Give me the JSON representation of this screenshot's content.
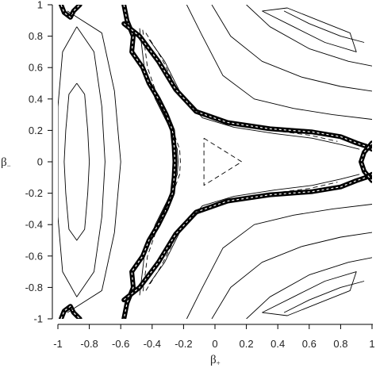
{
  "chart_data": {
    "type": "contour",
    "xlabel": "β",
    "xlabel_sub": "+",
    "ylabel": "β",
    "ylabel_sub": "−",
    "xlim": [
      -1,
      1
    ],
    "ylim": [
      -1,
      1
    ],
    "x_ticks": [
      -1,
      -0.8,
      -0.6,
      -0.4,
      -0.2,
      0,
      0.2,
      0.4,
      0.6,
      0.8,
      1
    ],
    "x_tick_labels": [
      "-1",
      "-0.8",
      "-0.6",
      "-0.4",
      "-0.2",
      "0",
      "0.2",
      "0.4",
      "0.6",
      "0.8",
      "1"
    ],
    "y_ticks": [
      1,
      0.8,
      0.6,
      0.4,
      0.2,
      0,
      -0.2,
      -0.4,
      -0.6,
      -0.8,
      -1
    ],
    "y_tick_labels": [
      "1",
      "0.8",
      "0.6",
      "0.4",
      "0.2",
      "0",
      "-0.2",
      "-0.4",
      "-0.6",
      "-0.8",
      "-1"
    ],
    "grid": false,
    "line_color": "#000000",
    "background": "#ffffff",
    "contours": [
      {
        "style": "dashed",
        "points": [
          [
            -0.07,
            0.15
          ],
          [
            0.17,
            0.0
          ],
          [
            -0.07,
            -0.15
          ],
          [
            -0.07,
            0.15
          ]
        ]
      },
      {
        "style": "solid",
        "points": [
          [
            -0.88,
            0.5
          ],
          [
            -0.83,
            0.43
          ],
          [
            -0.81,
            0.2
          ],
          [
            -0.8,
            0.0
          ],
          [
            -0.81,
            -0.2
          ],
          [
            -0.83,
            -0.43
          ],
          [
            -0.88,
            -0.5
          ],
          [
            -0.93,
            -0.43
          ],
          [
            -0.95,
            -0.2
          ],
          [
            -0.96,
            0.0
          ],
          [
            -0.95,
            0.2
          ],
          [
            -0.93,
            0.43
          ],
          [
            -0.88,
            0.5
          ]
        ]
      },
      {
        "style": "solid",
        "points": [
          [
            -0.88,
            0.86
          ],
          [
            -0.77,
            0.7
          ],
          [
            -0.72,
            0.35
          ],
          [
            -0.7,
            0.0
          ],
          [
            -0.72,
            -0.35
          ],
          [
            -0.77,
            -0.7
          ],
          [
            -0.88,
            -0.86
          ],
          [
            -0.97,
            -0.7
          ],
          [
            -1.0,
            -0.35
          ],
          [
            -1.0,
            0.0
          ],
          [
            -1.0,
            0.35
          ],
          [
            -0.97,
            0.7
          ],
          [
            -0.88,
            0.86
          ]
        ]
      },
      {
        "style": "solid",
        "points": [
          [
            -0.94,
            0.96
          ],
          [
            -0.72,
            0.82
          ],
          [
            -0.64,
            0.45
          ],
          [
            -0.6,
            0.0
          ],
          [
            -0.64,
            -0.45
          ],
          [
            -0.72,
            -0.82
          ],
          [
            -0.94,
            -0.96
          ]
        ]
      },
      {
        "style": "solid",
        "points": [
          [
            -0.48,
            0.85
          ],
          [
            -0.45,
            0.6
          ],
          [
            -0.38,
            0.4
          ],
          [
            -0.29,
            0.22
          ],
          [
            -0.24,
            0.08
          ],
          [
            -0.235,
            0.0
          ],
          [
            -0.24,
            -0.08
          ],
          [
            -0.29,
            -0.22
          ],
          [
            -0.38,
            -0.4
          ],
          [
            -0.45,
            -0.6
          ],
          [
            -0.48,
            -0.85
          ]
        ]
      },
      {
        "style": "dashed",
        "points": [
          [
            -0.46,
            0.84
          ],
          [
            -0.43,
            0.6
          ],
          [
            -0.36,
            0.4
          ],
          [
            -0.275,
            0.22
          ],
          [
            -0.225,
            0.08
          ],
          [
            -0.22,
            0.0
          ],
          [
            -0.225,
            -0.08
          ],
          [
            -0.275,
            -0.22
          ],
          [
            -0.36,
            -0.4
          ],
          [
            -0.43,
            -0.6
          ],
          [
            -0.46,
            -0.84
          ]
        ]
      },
      {
        "style": "solid",
        "points": [
          [
            -0.42,
            0.78
          ],
          [
            -0.32,
            0.64
          ],
          [
            -0.22,
            0.44
          ],
          [
            -0.08,
            0.28
          ],
          [
            0.12,
            0.22
          ],
          [
            0.38,
            0.18
          ],
          [
            0.62,
            0.15
          ],
          [
            0.8,
            0.11
          ],
          [
            0.92,
            0.08
          ]
        ]
      },
      {
        "style": "dashed",
        "points": [
          [
            -0.44,
            0.82
          ],
          [
            -0.34,
            0.66
          ],
          [
            -0.24,
            0.46
          ],
          [
            -0.1,
            0.3
          ],
          [
            0.1,
            0.24
          ],
          [
            0.36,
            0.2
          ],
          [
            0.6,
            0.17
          ],
          [
            0.78,
            0.13
          ]
        ]
      },
      {
        "style": "solid",
        "points": [
          [
            -0.42,
            -0.78
          ],
          [
            -0.32,
            -0.64
          ],
          [
            -0.22,
            -0.44
          ],
          [
            -0.08,
            -0.28
          ],
          [
            0.12,
            -0.22
          ],
          [
            0.38,
            -0.18
          ],
          [
            0.62,
            -0.15
          ],
          [
            0.8,
            -0.11
          ],
          [
            0.92,
            -0.08
          ]
        ]
      },
      {
        "style": "dashed",
        "points": [
          [
            -0.44,
            -0.82
          ],
          [
            -0.34,
            -0.66
          ],
          [
            -0.24,
            -0.46
          ],
          [
            -0.1,
            -0.3
          ],
          [
            0.1,
            -0.24
          ],
          [
            0.36,
            -0.2
          ],
          [
            0.6,
            -0.17
          ],
          [
            0.78,
            -0.13
          ]
        ]
      },
      {
        "style": "solid",
        "points": [
          [
            -0.18,
            1.0
          ],
          [
            -0.08,
            0.8
          ],
          [
            0.05,
            0.55
          ],
          [
            0.25,
            0.4
          ],
          [
            0.5,
            0.34
          ],
          [
            0.75,
            0.3
          ],
          [
            1.0,
            0.27
          ]
        ]
      },
      {
        "style": "solid",
        "points": [
          [
            -0.02,
            1.0
          ],
          [
            0.1,
            0.8
          ],
          [
            0.3,
            0.64
          ],
          [
            0.55,
            0.54
          ],
          [
            0.8,
            0.48
          ],
          [
            1.0,
            0.45
          ]
        ]
      },
      {
        "style": "solid",
        "points": [
          [
            0.2,
            1.0
          ],
          [
            0.35,
            0.86
          ],
          [
            0.6,
            0.72
          ],
          [
            0.85,
            0.64
          ],
          [
            1.0,
            0.61
          ]
        ]
      },
      {
        "style": "solid",
        "points": [
          [
            0.44,
            0.96
          ],
          [
            0.6,
            0.88
          ],
          [
            0.8,
            0.8
          ],
          [
            0.95,
            0.76
          ]
        ]
      },
      {
        "style": "solid",
        "points": [
          [
            0.3,
            0.96
          ],
          [
            0.5,
            0.86
          ],
          [
            0.7,
            0.76
          ],
          [
            0.9,
            0.7
          ],
          [
            0.86,
            0.82
          ],
          [
            0.66,
            0.9
          ],
          [
            0.46,
            0.98
          ],
          [
            0.3,
            0.96
          ]
        ]
      },
      {
        "style": "solid",
        "points": [
          [
            -0.18,
            -1.0
          ],
          [
            -0.08,
            -0.8
          ],
          [
            0.05,
            -0.55
          ],
          [
            0.25,
            -0.4
          ],
          [
            0.5,
            -0.34
          ],
          [
            0.75,
            -0.3
          ],
          [
            1.0,
            -0.27
          ]
        ]
      },
      {
        "style": "solid",
        "points": [
          [
            -0.02,
            -1.0
          ],
          [
            0.1,
            -0.8
          ],
          [
            0.3,
            -0.64
          ],
          [
            0.55,
            -0.54
          ],
          [
            0.8,
            -0.48
          ],
          [
            1.0,
            -0.45
          ]
        ]
      },
      {
        "style": "solid",
        "points": [
          [
            0.2,
            -1.0
          ],
          [
            0.35,
            -0.86
          ],
          [
            0.6,
            -0.72
          ],
          [
            0.85,
            -0.64
          ],
          [
            1.0,
            -0.61
          ]
        ]
      },
      {
        "style": "solid",
        "points": [
          [
            0.44,
            -0.96
          ],
          [
            0.6,
            -0.88
          ],
          [
            0.8,
            -0.8
          ],
          [
            0.95,
            -0.76
          ]
        ]
      },
      {
        "style": "solid",
        "points": [
          [
            0.3,
            -0.96
          ],
          [
            0.5,
            -0.86
          ],
          [
            0.7,
            -0.76
          ],
          [
            0.9,
            -0.7
          ],
          [
            0.86,
            -0.82
          ],
          [
            0.66,
            -0.9
          ],
          [
            0.46,
            -0.98
          ],
          [
            0.3,
            -0.96
          ]
        ]
      }
    ],
    "heavy_bands": [
      {
        "points": [
          [
            -0.58,
            1.0
          ],
          [
            -0.56,
            0.9
          ],
          [
            -0.52,
            0.8
          ],
          [
            -0.53,
            0.7
          ],
          [
            -0.46,
            0.6
          ],
          [
            -0.42,
            0.5
          ],
          [
            -0.36,
            0.4
          ],
          [
            -0.31,
            0.3
          ],
          [
            -0.27,
            0.2
          ],
          [
            -0.26,
            0.1
          ],
          [
            -0.255,
            0.0
          ],
          [
            -0.26,
            -0.1
          ],
          [
            -0.27,
            -0.2
          ],
          [
            -0.31,
            -0.3
          ],
          [
            -0.36,
            -0.4
          ],
          [
            -0.42,
            -0.5
          ],
          [
            -0.46,
            -0.6
          ],
          [
            -0.53,
            -0.7
          ],
          [
            -0.52,
            -0.8
          ],
          [
            -0.56,
            -0.9
          ],
          [
            -0.58,
            -1.0
          ]
        ]
      },
      {
        "points": [
          [
            -0.58,
            0.88
          ],
          [
            -0.48,
            0.8
          ],
          [
            -0.36,
            0.64
          ],
          [
            -0.25,
            0.46
          ],
          [
            -0.12,
            0.32
          ],
          [
            0.08,
            0.25
          ],
          [
            0.35,
            0.21
          ],
          [
            0.62,
            0.19
          ],
          [
            0.8,
            0.16
          ],
          [
            0.9,
            0.12
          ],
          [
            0.96,
            0.1
          ],
          [
            1.0,
            0.08
          ]
        ]
      },
      {
        "points": [
          [
            -0.58,
            -0.88
          ],
          [
            -0.48,
            -0.8
          ],
          [
            -0.36,
            -0.64
          ],
          [
            -0.25,
            -0.46
          ],
          [
            -0.12,
            -0.32
          ],
          [
            0.08,
            -0.25
          ],
          [
            0.35,
            -0.21
          ],
          [
            0.62,
            -0.19
          ],
          [
            0.8,
            -0.16
          ],
          [
            0.9,
            -0.12
          ],
          [
            0.96,
            -0.1
          ],
          [
            1.0,
            -0.08
          ]
        ]
      },
      {
        "points": [
          [
            -0.98,
            1.0
          ],
          [
            -0.96,
            0.95
          ],
          [
            -0.92,
            0.92
          ],
          [
            -0.9,
            0.96
          ],
          [
            -0.86,
            1.0
          ]
        ]
      },
      {
        "points": [
          [
            -0.98,
            -1.0
          ],
          [
            -0.96,
            -0.95
          ],
          [
            -0.92,
            -0.92
          ],
          [
            -0.9,
            -0.96
          ],
          [
            -0.86,
            -1.0
          ]
        ]
      },
      {
        "points": [
          [
            1.0,
            0.12
          ],
          [
            0.95,
            0.06
          ],
          [
            0.93,
            0.0
          ],
          [
            0.95,
            -0.06
          ],
          [
            1.0,
            -0.12
          ]
        ]
      }
    ]
  }
}
